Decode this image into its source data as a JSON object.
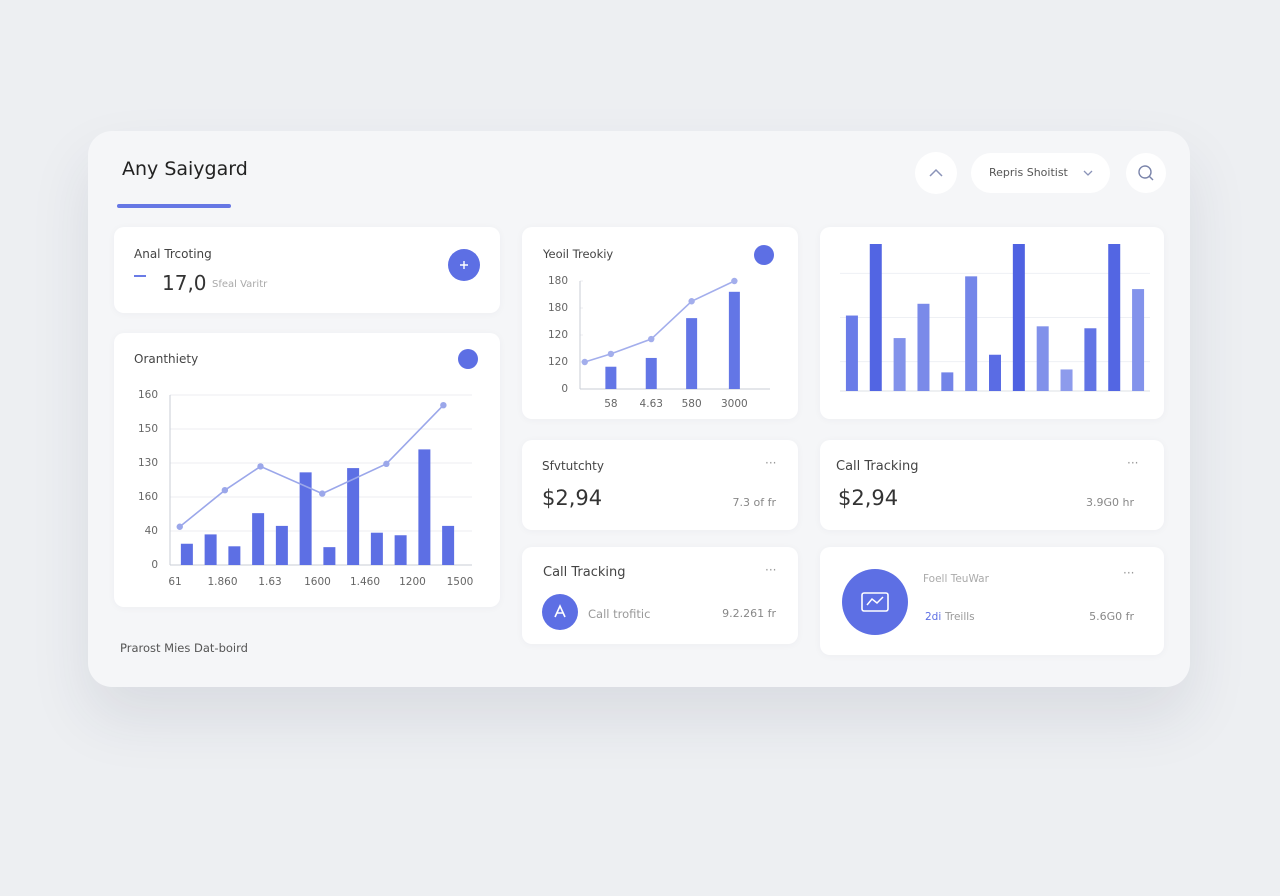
{
  "header": {
    "title": "Any Saiygard",
    "dropdown": "Repris Shoitist"
  },
  "kpi": {
    "title": "Anal Trcoting",
    "value": "17,0",
    "note": "Sfeal Varitr"
  },
  "stat_a": {
    "title": "Sfvtutchty",
    "value": "$2,94",
    "note": "7.3 of fr"
  },
  "stat_b": {
    "title": "Call Tracking",
    "value": "$2,94",
    "note": "3.9G0 hr"
  },
  "tracking": {
    "title": "Call Tracking",
    "label": "Call trofitic",
    "note": "9.2.261 fr"
  },
  "summary": {
    "title": "Foell TeuWar",
    "prefix": "2di",
    "label": "Treills",
    "note": "5.6G0 fr"
  },
  "footer": "Prarost Mies Dat-boird",
  "chart_data": [
    {
      "type": "combo",
      "title": "Oranthiety",
      "xlim": [
        0,
        12
      ],
      "xticks": [
        {
          "value": 0,
          "label": "61"
        },
        {
          "value": 2,
          "label": "1.860"
        },
        {
          "value": 4,
          "label": "1.63"
        },
        {
          "value": 6,
          "label": "1600"
        },
        {
          "value": 8,
          "label": "1.460"
        },
        {
          "value": 10,
          "label": "1200"
        },
        {
          "value": 12,
          "label": "1500"
        }
      ],
      "ylim": [
        0,
        200
      ],
      "yticks": [
        0,
        40,
        {
          "value": 80,
          "label": "160"
        },
        {
          "value": 120,
          "label": "130"
        },
        {
          "value": 160,
          "label": "150"
        },
        {
          "value": 200,
          "label": "160"
        }
      ],
      "grid": true,
      "series": [
        {
          "kind": "bar",
          "color": "#5d6fe4",
          "x": [
            0.5,
            1.5,
            2.5,
            3.5,
            4.5,
            5.5,
            6.5,
            7.5,
            8.5,
            9.5,
            10.5,
            11.5
          ],
          "values": [
            25,
            36,
            22,
            61,
            46,
            109,
            21,
            114,
            38,
            35,
            136,
            46
          ]
        },
        {
          "kind": "line",
          "color": "#9ba7ea",
          "x": [
            0.2,
            2.1,
            3.6,
            6.2,
            8.9,
            11.3
          ],
          "values": [
            45,
            88,
            116,
            84,
            119,
            188
          ]
        }
      ]
    },
    {
      "type": "combo",
      "title": "Yeoil Treokiy",
      "xlim": [
        0,
        4
      ],
      "xticks": [
        {
          "value": 0.65,
          "label": "58"
        },
        {
          "value": 1.5,
          "label": "4.63"
        },
        {
          "value": 2.35,
          "label": "580"
        },
        {
          "value": 3.25,
          "label": "3000"
        }
      ],
      "ylim": [
        0,
        160
      ],
      "yticks": [
        0,
        {
          "value": 40,
          "label": "120"
        },
        {
          "value": 80,
          "label": "120"
        },
        {
          "value": 120,
          "label": "180"
        },
        {
          "value": 160,
          "label": "180"
        }
      ],
      "grid": false,
      "series": [
        {
          "kind": "bar",
          "color": "#6376e6",
          "x": [
            0.65,
            1.5,
            2.35,
            3.25
          ],
          "values": [
            33,
            46,
            105,
            144
          ]
        },
        {
          "kind": "line",
          "color": "#a3aeec",
          "x": [
            0.1,
            0.65,
            1.5,
            2.35,
            3.25
          ],
          "values": [
            40,
            52,
            74,
            130,
            160
          ]
        }
      ]
    },
    {
      "type": "bar",
      "ylim": [
        0,
        150
      ],
      "grid": true,
      "colors": [
        "#6a7ce8",
        "#5265e3",
        "#8292ea",
        "#7a8ae9",
        "#7384e8",
        "#7486e9",
        "#5a6ce4",
        "#4f62e2",
        "#8191ea",
        "#8d9bec",
        "#6274e5",
        "#5366e3",
        "#8393eb"
      ],
      "values": [
        77,
        150,
        54,
        89,
        19,
        117,
        37,
        150,
        66,
        22,
        64,
        150,
        104
      ]
    }
  ]
}
